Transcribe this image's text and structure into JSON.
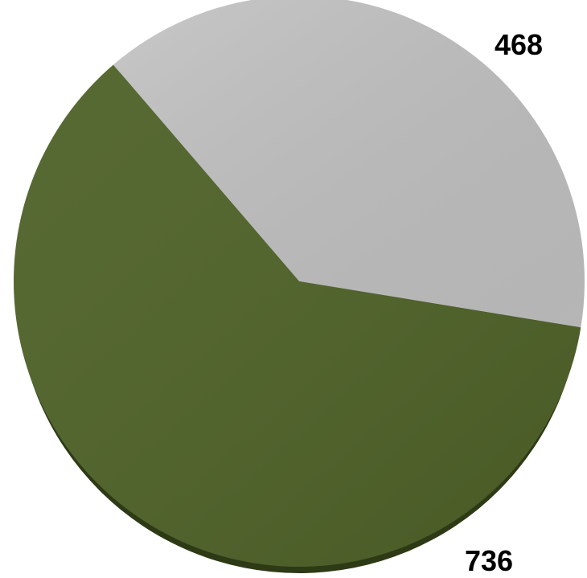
{
  "chart_data": {
    "type": "pie",
    "slices": [
      {
        "value": 468,
        "label": "468",
        "color": "#bfbfbf"
      },
      {
        "value": 736,
        "label": "736",
        "color": "#4f6228"
      }
    ],
    "shadow_color": "#2d3a15",
    "title": "",
    "legend": "none"
  }
}
